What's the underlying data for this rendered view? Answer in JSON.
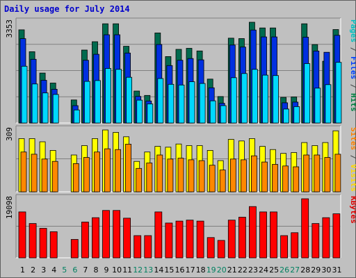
{
  "chart_data": {
    "type": "bar",
    "title": "Daily usage for July 2014",
    "categories": [
      "1",
      "2",
      "3",
      "4",
      "5",
      "6",
      "7",
      "8",
      "9",
      "10",
      "11",
      "12",
      "13",
      "14",
      "15",
      "16",
      "17",
      "18",
      "19",
      "20",
      "21",
      "22",
      "23",
      "24",
      "25",
      "26",
      "27",
      "28",
      "29",
      "30",
      "31"
    ],
    "weekend_days": [
      "5",
      "6",
      "12",
      "13",
      "19",
      "20",
      "26",
      "27"
    ],
    "panels": [
      {
        "name": "top",
        "scale_label": "3353",
        "ymax": 3353,
        "side_labels": [
          {
            "text": "Pages",
            "color": "#00c0c0"
          },
          {
            "text": " / ",
            "color": "#404040"
          },
          {
            "text": "Files",
            "color": "#0040ff"
          },
          {
            "text": " / ",
            "color": "#404040"
          },
          {
            "text": "Hits",
            "color": "#008040"
          }
        ],
        "series": [
          {
            "name": "Hits",
            "color": "#006a4e",
            "values": [
              3101,
              2372,
              1663,
              1329,
              0,
              768,
              2428,
              2706,
              3301,
              3301,
              2553,
              1063,
              917,
              2997,
              2210,
              2451,
              2487,
              2399,
              1461,
              881,
              2824,
              2809,
              3353,
              3164,
              3164,
              853,
              867,
              3301,
              2611,
              2055,
              3110
            ]
          },
          {
            "name": "Files",
            "color": "#0030e0",
            "values": [
              2808,
              2121,
              1422,
              1124,
              0,
              578,
              2088,
              2286,
              2937,
              2937,
              2329,
              885,
              734,
              2612,
              1912,
              2088,
              2147,
              2103,
              1172,
              656,
              2594,
              2528,
              3093,
              2864,
              2864,
              674,
              695,
              2856,
              2395,
              2353,
              2919
            ]
          },
          {
            "name": "Pages",
            "color": "#00d8ff",
            "values": [
              1889,
              1299,
              1001,
              951,
              0,
              434,
              1384,
              1414,
              1815,
              1786,
              1521,
              761,
              637,
              1479,
              1288,
              1266,
              1374,
              1315,
              737,
              577,
              1508,
              1646,
              1786,
              1594,
              1579,
              465,
              546,
              1977,
              1161,
              1276,
              2019
            ]
          }
        ]
      },
      {
        "name": "middle",
        "scale_label": "309",
        "ymax": 309,
        "side_labels": [
          {
            "text": "Sites",
            "color": "#ff8000"
          },
          {
            "text": " / ",
            "color": "#404040"
          },
          {
            "text": "Visits",
            "color": "#ffd800"
          }
        ],
        "series": [
          {
            "name": "Visits",
            "color": "#ffff00",
            "values": [
              266,
              266,
              250,
              207,
              0,
              184,
              231,
              266,
              309,
              297,
              275,
              152,
              199,
              227,
              223,
              239,
              231,
              231,
              207,
              156,
              262,
              254,
              266,
              227,
              211,
              192,
              196,
              246,
              231,
              246,
              305
            ]
          },
          {
            "name": "Sites",
            "color": "#ff8800",
            "values": [
              199,
              188,
              164,
              152,
              0,
              141,
              172,
              199,
              215,
              211,
              238,
              117,
              144,
              184,
              164,
              168,
              160,
              156,
              133,
              109,
              164,
              160,
              180,
              149,
              137,
              129,
              125,
              184,
              184,
              172,
              188
            ]
          }
        ]
      },
      {
        "name": "bottom",
        "scale_label": "19098",
        "ymax": 19098,
        "side_labels": [
          {
            "text": "KBytes",
            "color": "#e00000"
          }
        ],
        "series": [
          {
            "name": "KBytes",
            "color": "#ff0000",
            "values": [
              14860,
              11106,
              9543,
              8445,
              0,
              5945,
              11575,
              12982,
              15330,
              15330,
              12825,
              7194,
              7194,
              14860,
              11262,
              11888,
              12200,
              11888,
              6568,
              5633,
              12200,
              13138,
              16582,
              14860,
              14860,
              7194,
              8133,
              19098,
              11106,
              12982,
              14234
            ]
          }
        ]
      }
    ]
  }
}
